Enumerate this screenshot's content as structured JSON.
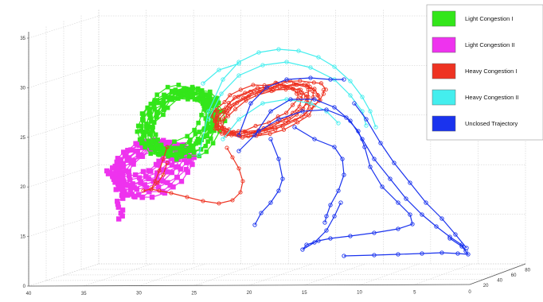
{
  "chart_data": {
    "type": "scatter",
    "projection": "3d",
    "grid": true,
    "legend_position": "top-right",
    "z_ticks": [
      "0",
      "15",
      "20",
      "25",
      "30",
      "35"
    ],
    "x_ticks": [
      "40",
      "35",
      "30",
      "25",
      "20",
      "15",
      "10",
      "5",
      "0"
    ],
    "y_ticks": [
      "20",
      "40",
      "60",
      "80"
    ],
    "series": [
      {
        "name": "Light Congestion I",
        "color": "#33e61a"
      },
      {
        "name": "Light Congestion II",
        "color": "#ee33ee"
      },
      {
        "name": "Heavy Congestion I",
        "color": "#ee3322"
      },
      {
        "name": "Heavy Congestion II",
        "color": "#44eeee"
      },
      {
        "name": "Unclosed Trajectory",
        "color": "#1a33ee"
      }
    ]
  }
}
